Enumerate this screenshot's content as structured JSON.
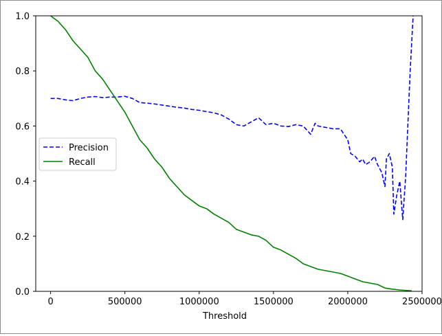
{
  "chart_data": {
    "type": "line",
    "title": "",
    "xlabel": "Threshold",
    "ylabel": "",
    "xlim": [
      -100000,
      2500000
    ],
    "ylim": [
      0.0,
      1.0
    ],
    "x_ticks": [
      0,
      500000,
      1000000,
      1500000,
      2000000,
      2500000
    ],
    "x_tick_labels": [
      "0",
      "500000",
      "1000000",
      "1500000",
      "2000000",
      "2500000"
    ],
    "y_ticks": [
      0.0,
      0.2,
      0.4,
      0.6,
      0.8,
      1.0
    ],
    "y_tick_labels": [
      "0.0",
      "0.2",
      "0.4",
      "0.6",
      "0.8",
      "1.0"
    ],
    "grid": false,
    "legend": "center-left",
    "series": [
      {
        "name": "Precision",
        "color": "#0000ff",
        "linestyle": "dashed",
        "points": [
          [
            0,
            0.7
          ],
          [
            50000,
            0.7
          ],
          [
            100000,
            0.695
          ],
          [
            150000,
            0.692
          ],
          [
            200000,
            0.7
          ],
          [
            250000,
            0.705
          ],
          [
            300000,
            0.707
          ],
          [
            350000,
            0.703
          ],
          [
            400000,
            0.705
          ],
          [
            450000,
            0.705
          ],
          [
            500000,
            0.708
          ],
          [
            550000,
            0.7
          ],
          [
            600000,
            0.685
          ],
          [
            650000,
            0.683
          ],
          [
            700000,
            0.68
          ],
          [
            750000,
            0.676
          ],
          [
            800000,
            0.672
          ],
          [
            850000,
            0.668
          ],
          [
            900000,
            0.665
          ],
          [
            950000,
            0.66
          ],
          [
            1000000,
            0.657
          ],
          [
            1050000,
            0.652
          ],
          [
            1100000,
            0.648
          ],
          [
            1150000,
            0.64
          ],
          [
            1200000,
            0.625
          ],
          [
            1250000,
            0.605
          ],
          [
            1300000,
            0.6
          ],
          [
            1350000,
            0.615
          ],
          [
            1400000,
            0.63
          ],
          [
            1450000,
            0.605
          ],
          [
            1500000,
            0.61
          ],
          [
            1550000,
            0.6
          ],
          [
            1600000,
            0.598
          ],
          [
            1650000,
            0.605
          ],
          [
            1700000,
            0.6
          ],
          [
            1750000,
            0.57
          ],
          [
            1780000,
            0.61
          ],
          [
            1800000,
            0.6
          ],
          [
            1850000,
            0.595
          ],
          [
            1900000,
            0.59
          ],
          [
            1950000,
            0.59
          ],
          [
            2000000,
            0.55
          ],
          [
            2020000,
            0.5
          ],
          [
            2050000,
            0.49
          ],
          [
            2080000,
            0.47
          ],
          [
            2100000,
            0.48
          ],
          [
            2120000,
            0.46
          ],
          [
            2150000,
            0.47
          ],
          [
            2180000,
            0.49
          ],
          [
            2200000,
            0.46
          ],
          [
            2230000,
            0.43
          ],
          [
            2250000,
            0.38
          ],
          [
            2260000,
            0.48
          ],
          [
            2280000,
            0.5
          ],
          [
            2300000,
            0.45
          ],
          [
            2310000,
            0.28
          ],
          [
            2330000,
            0.35
          ],
          [
            2350000,
            0.4
          ],
          [
            2370000,
            0.26
          ],
          [
            2390000,
            0.42
          ],
          [
            2400000,
            0.55
          ],
          [
            2420000,
            0.8
          ],
          [
            2440000,
            1.0
          ]
        ]
      },
      {
        "name": "Recall",
        "color": "#008000",
        "linestyle": "solid",
        "points": [
          [
            0,
            1.0
          ],
          [
            50000,
            0.98
          ],
          [
            100000,
            0.95
          ],
          [
            150000,
            0.91
          ],
          [
            200000,
            0.88
          ],
          [
            250000,
            0.85
          ],
          [
            300000,
            0.8
          ],
          [
            350000,
            0.77
          ],
          [
            400000,
            0.73
          ],
          [
            450000,
            0.69
          ],
          [
            500000,
            0.65
          ],
          [
            550000,
            0.6
          ],
          [
            600000,
            0.55
          ],
          [
            650000,
            0.52
          ],
          [
            700000,
            0.48
          ],
          [
            750000,
            0.45
          ],
          [
            800000,
            0.41
          ],
          [
            850000,
            0.38
          ],
          [
            900000,
            0.35
          ],
          [
            950000,
            0.33
          ],
          [
            1000000,
            0.31
          ],
          [
            1050000,
            0.3
          ],
          [
            1100000,
            0.28
          ],
          [
            1150000,
            0.265
          ],
          [
            1200000,
            0.25
          ],
          [
            1250000,
            0.225
          ],
          [
            1300000,
            0.215
          ],
          [
            1350000,
            0.205
          ],
          [
            1400000,
            0.2
          ],
          [
            1450000,
            0.185
          ],
          [
            1500000,
            0.16
          ],
          [
            1550000,
            0.15
          ],
          [
            1600000,
            0.135
          ],
          [
            1650000,
            0.12
          ],
          [
            1700000,
            0.1
          ],
          [
            1750000,
            0.09
          ],
          [
            1800000,
            0.08
          ],
          [
            1850000,
            0.075
          ],
          [
            1900000,
            0.07
          ],
          [
            1950000,
            0.065
          ],
          [
            2000000,
            0.055
          ],
          [
            2050000,
            0.045
          ],
          [
            2100000,
            0.035
          ],
          [
            2150000,
            0.03
          ],
          [
            2200000,
            0.025
          ],
          [
            2250000,
            0.012
          ],
          [
            2300000,
            0.008
          ],
          [
            2350000,
            0.005
          ],
          [
            2400000,
            0.003
          ],
          [
            2430000,
            0.002
          ]
        ]
      }
    ]
  }
}
